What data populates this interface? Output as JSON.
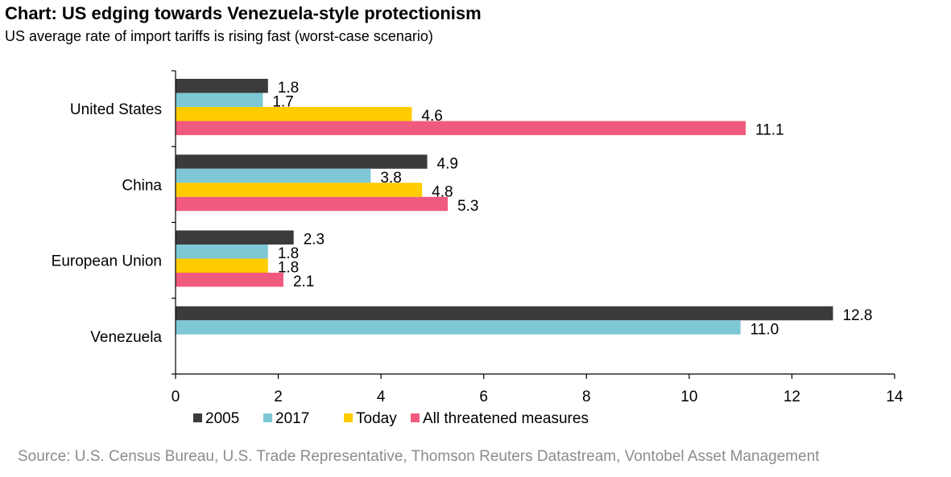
{
  "header": {
    "title": "Chart: US edging towards Venezuela-style protectionism",
    "subtitle": "US average rate of import tariffs is rising fast (worst-case scenario)"
  },
  "footer": {
    "source": "Source: U.S. Census Bureau, U.S. Trade Representative, Thomson Reuters Datastream, Vontobel Asset Management"
  },
  "chart_data": {
    "type": "bar",
    "orientation": "horizontal",
    "categories": [
      "United States",
      "China",
      "European Union",
      "Venezuela"
    ],
    "series": [
      {
        "name": "2005",
        "color": "#3b3b3b",
        "values": [
          1.8,
          4.9,
          2.3,
          12.8
        ],
        "labels": [
          "1.8",
          "4.9",
          "2.3",
          "12.8"
        ]
      },
      {
        "name": "2017",
        "color": "#7ec8d5",
        "values": [
          1.7,
          3.8,
          1.8,
          11.0
        ],
        "labels": [
          "1.7",
          "3.8",
          "1.8",
          "11.0"
        ]
      },
      {
        "name": "Today",
        "color": "#ffcc00",
        "values": [
          4.6,
          4.8,
          1.8,
          null
        ],
        "labels": [
          "4.6",
          "4.8",
          "1.8",
          null
        ]
      },
      {
        "name": "All threatened measures",
        "color": "#f05a7e",
        "values": [
          11.1,
          5.3,
          2.1,
          null
        ],
        "labels": [
          "11.1",
          "5.3",
          "2.1",
          null
        ]
      }
    ],
    "xlim": [
      0,
      14
    ],
    "x_ticks": [
      "0",
      "2",
      "4",
      "6",
      "8",
      "10",
      "12",
      "14"
    ],
    "grid": false,
    "legend_position": "bottom"
  }
}
